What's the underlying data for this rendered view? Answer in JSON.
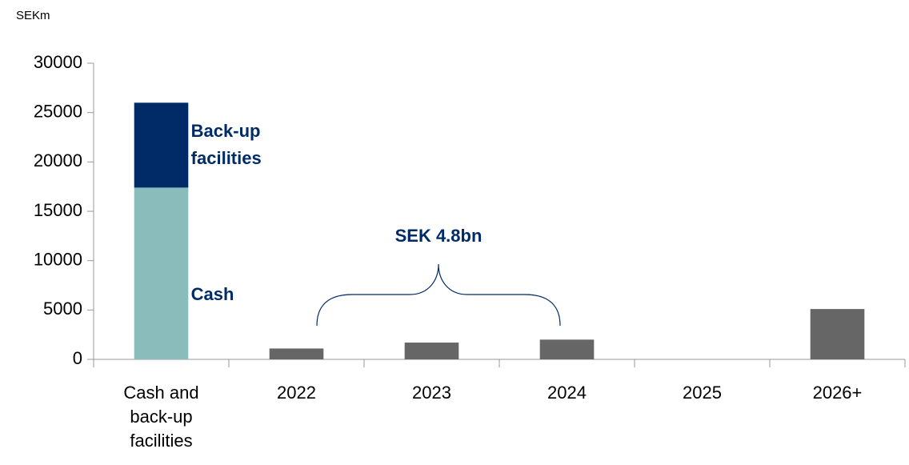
{
  "chart_data": {
    "type": "bar",
    "stacked": true,
    "ylabel": "SEKm",
    "categories": [
      "Cash and back-up facilities",
      "2022",
      "2023",
      "2024",
      "2025",
      "2026+"
    ],
    "series": [
      {
        "name": "Cash",
        "color": "#8bbcbc",
        "values": [
          17400,
          null,
          null,
          null,
          null,
          null
        ]
      },
      {
        "name": "Back-up facilities",
        "color": "#002b66",
        "values": [
          8600,
          null,
          null,
          null,
          null,
          null
        ]
      },
      {
        "color": "#666666",
        "values": [
          null,
          1100,
          1700,
          2000,
          0,
          5100
        ]
      }
    ],
    "annotation": "SEK 4.8bn",
    "ylim": [
      0,
      30000
    ],
    "yticks": [
      0,
      5000,
      10000,
      15000,
      20000,
      25000,
      30000
    ],
    "grid": false
  }
}
